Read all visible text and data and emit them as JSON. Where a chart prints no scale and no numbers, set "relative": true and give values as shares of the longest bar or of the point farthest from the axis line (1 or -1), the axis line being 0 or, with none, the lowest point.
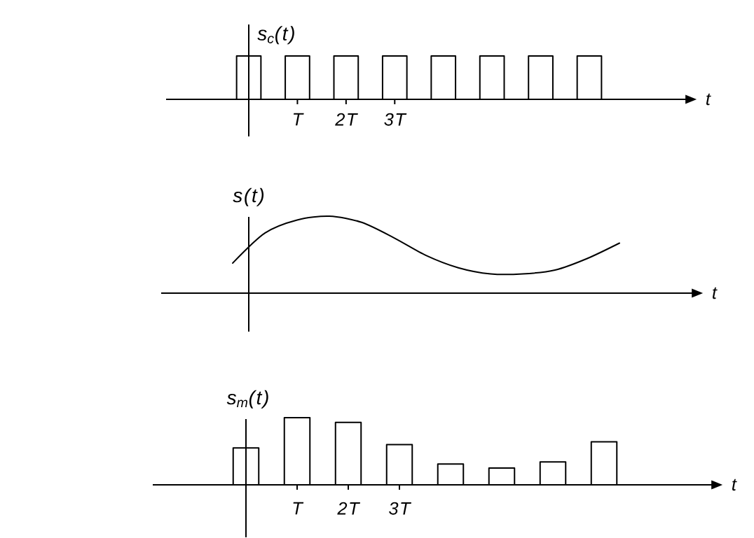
{
  "chart_data": [
    {
      "type": "bar",
      "relative": true,
      "ylabel": "s$_{c}$(t)",
      "xlabel": "t",
      "categories": [
        null,
        "T",
        "2T",
        "3T",
        null,
        null,
        null,
        null
      ],
      "values": [
        1,
        1,
        1,
        1,
        1,
        1,
        1,
        1
      ],
      "color": "#000000"
    },
    {
      "type": "line",
      "relative": true,
      "ylabel": "s(t)",
      "xlabel": "t",
      "categories": [
        null,
        null,
        null,
        null,
        null,
        null,
        null,
        null,
        null,
        null,
        null,
        null,
        null
      ],
      "values": [
        0.39,
        0.78,
        0.95,
        1,
        0.92,
        0.72,
        0.49,
        0.33,
        0.25,
        0.25,
        0.3,
        0.45,
        0.65
      ],
      "color": "#000000"
    },
    {
      "type": "bar",
      "relative": true,
      "ylabel": "s$_{m}$(t)",
      "xlabel": "t",
      "categories": [
        null,
        "T",
        "2T",
        "3T",
        null,
        null,
        null,
        null
      ],
      "values": [
        0.55,
        1,
        0.93,
        0.6,
        0.31,
        0.25,
        0.34,
        0.64
      ],
      "color": "#000000"
    }
  ]
}
